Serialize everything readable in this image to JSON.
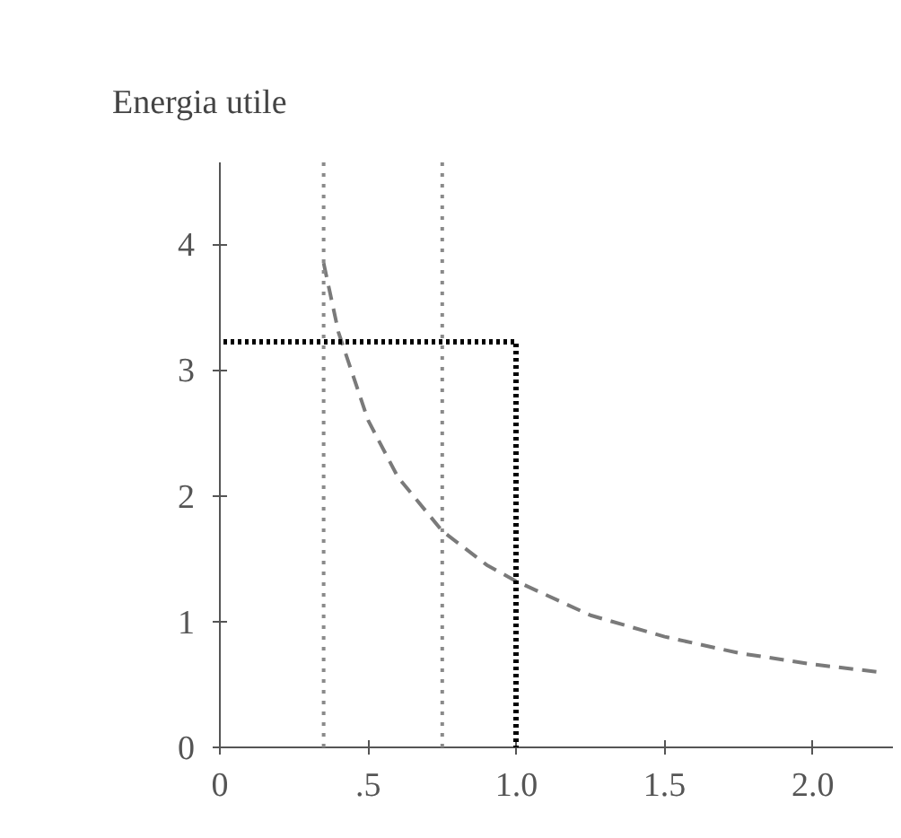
{
  "chart_data": {
    "type": "line",
    "title": "Energia utile",
    "x": [
      0.35,
      0.4,
      0.5,
      0.6,
      0.75,
      0.9,
      1.0,
      1.25,
      1.5,
      1.75,
      2.0,
      2.22
    ],
    "series": [
      {
        "color": "#7a7a7a",
        "values": [
          3.85,
          3.3,
          2.6,
          2.15,
          1.72,
          1.45,
          1.32,
          1.05,
          0.88,
          0.75,
          0.66,
          0.6
        ]
      }
    ],
    "line_style": "dashed",
    "marker": "none",
    "grid": false,
    "xlim": [
      0,
      2.27
    ],
    "ylim": [
      0,
      4.65
    ],
    "xticks": [
      0,
      {
        "value": 0.5,
        "label": ".5"
      },
      {
        "value": 1.0,
        "label": "1.0"
      },
      {
        "value": 1.5,
        "label": "1.5"
      },
      {
        "value": 2.0,
        "label": "2.0"
      }
    ],
    "yticks": [
      0,
      1,
      2,
      3,
      4
    ],
    "ref_lines": [
      {
        "axis": "x",
        "value": 0.35,
        "label": null,
        "color": "#8a8a8a",
        "line_style": "dotted"
      },
      {
        "axis": "x",
        "value": 0.75,
        "label": null,
        "color": "#8a8a8a",
        "line_style": "dotted"
      }
    ]
  }
}
